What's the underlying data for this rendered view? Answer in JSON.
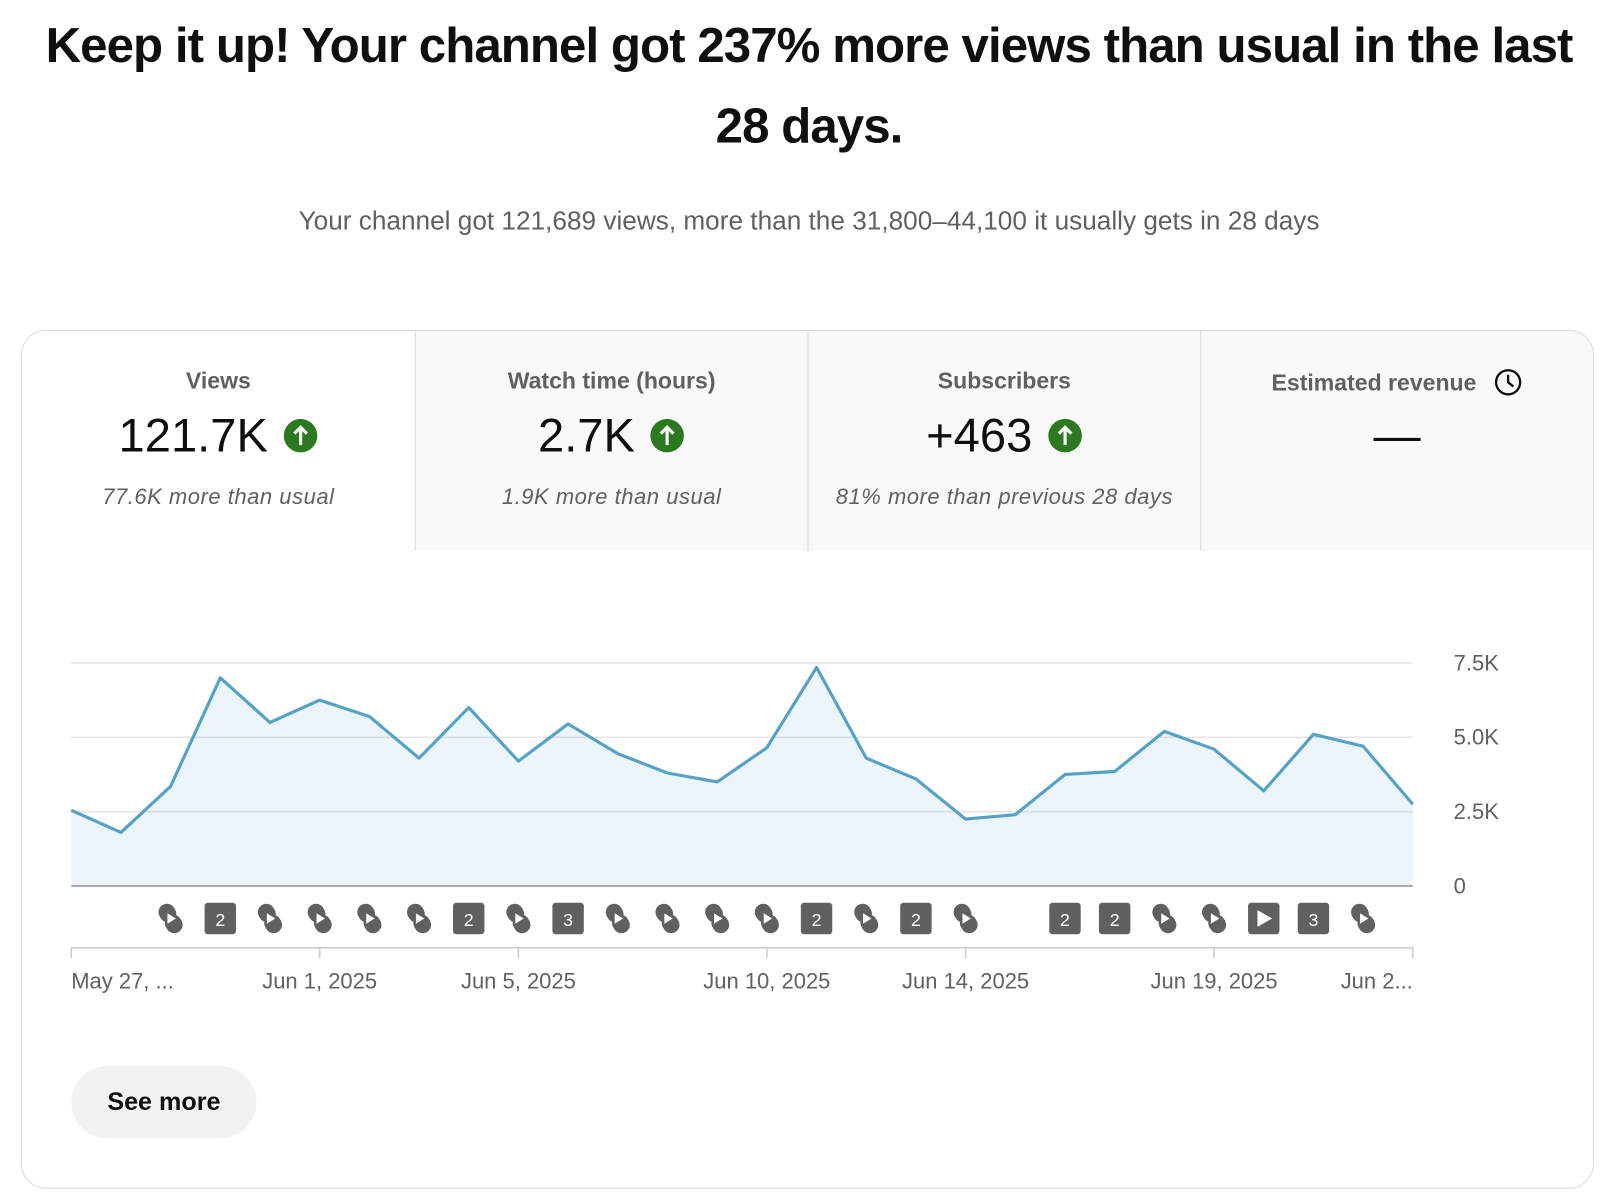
{
  "header": {
    "title": "Keep it up! Your channel got 237% more views than usual in the last 28 days.",
    "subtitle": "Your channel got 121,689 views, more than the 31,800–44,100 it usually gets in 28 days"
  },
  "metrics": [
    {
      "label": "Views",
      "value": "121.7K",
      "note": "77.6K more than usual"
    },
    {
      "label": "Watch time (hours)",
      "value": "2.7K",
      "note": "1.9K more than usual"
    },
    {
      "label": "Subscribers",
      "value": "+463",
      "note": "81% more than previous 28 days"
    },
    {
      "label": "Estimated revenue",
      "value": "—"
    }
  ],
  "chart_data": {
    "type": "area",
    "color": "#55a1c8",
    "categories": [
      "May 27, ...",
      null,
      null,
      null,
      null,
      "Jun 1, 2025",
      null,
      null,
      null,
      "Jun 5, 2025",
      null,
      null,
      null,
      null,
      "Jun 10, 2025",
      null,
      null,
      null,
      "Jun 14, 2025",
      null,
      null,
      null,
      null,
      "Jun 19, 2025",
      null,
      null,
      null,
      "Jun 2..."
    ],
    "values": [
      2550,
      1800,
      3350,
      7000,
      5500,
      6250,
      5700,
      4300,
      6000,
      4200,
      5450,
      4450,
      3800,
      3500,
      4650,
      7350,
      4300,
      3600,
      2250,
      2400,
      3750,
      3850,
      5200,
      4600,
      3200,
      5100,
      4700,
      2750
    ],
    "upload_badges": [
      null,
      null,
      null,
      "2",
      null,
      null,
      null,
      null,
      "2",
      null,
      "3",
      null,
      null,
      null,
      null,
      "2",
      null,
      "2",
      null,
      null,
      "2",
      "2",
      null,
      null,
      null,
      "3",
      null,
      null
    ],
    "ylim": [
      0,
      7500
    ],
    "yticks": [
      0,
      {
        "value": 2500,
        "label": "2.5K"
      },
      {
        "value": 5000,
        "label": "5.0K"
      },
      {
        "value": 7500,
        "label": "7.5K"
      }
    ],
    "grid": true
  },
  "button": {
    "label": "See more"
  }
}
